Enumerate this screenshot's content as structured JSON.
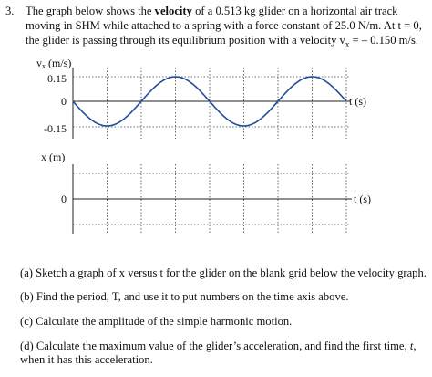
{
  "problem": {
    "number": "3.",
    "intro_before_bold": "The graph below shows the ",
    "intro_bold": "velocity",
    "intro_after_bold": " of a 0.513 kg glider on a horizontal air track moving in SHM while attached to a spring with a force constant of 25.0 N/m.   At t = 0, the glider is passing through its equilibrium position with a velocity v",
    "intro_subscript": "x",
    "intro_end": " = – 0.150 m/s."
  },
  "chart_data": [
    {
      "type": "line",
      "function": "-0.15*sin(2*pi*t/T)",
      "periods_shown": 2,
      "x_time_axis_unlabeled": true,
      "ylim": [
        -0.15,
        0.15
      ],
      "y_tick_labels": [
        "0.15",
        "0",
        "-0.15"
      ],
      "ylabel": "vx (m/s)",
      "xlabel": "t (s)",
      "grid": "dotted",
      "vertical_grid_lines": 8,
      "line_color": "#1f4e9c"
    },
    {
      "type": "line",
      "blank": true,
      "y_tick_labels": [
        "0"
      ],
      "ylabel": "x (m)",
      "xlabel": "t (s)",
      "grid": "dotted",
      "vertical_grid_lines": 8
    }
  ],
  "graph1": {
    "ylabel_v": "v",
    "ylabel_sub": "x",
    "ylabel_unit": " (m/s)",
    "tick_top": "0.15",
    "tick_zero": "0",
    "tick_bottom": "-0.15",
    "xlabel": "t (s)"
  },
  "graph2": {
    "ylabel": "x (m)",
    "tick_zero": "0",
    "xlabel": "t (s)"
  },
  "questions": [
    "(a)  Sketch a graph of x versus t for the glider on the blank grid below the velocity graph.",
    "(b)  Find the period, T, and use it to put numbers on the time axis above.",
    "(c)  Calculate the amplitude of the simple harmonic motion.",
    "(d)  Calculate the maximum value of the glider’s acceleration, and find the first time, ",
    "t",
    ", when it has this acceleration."
  ]
}
